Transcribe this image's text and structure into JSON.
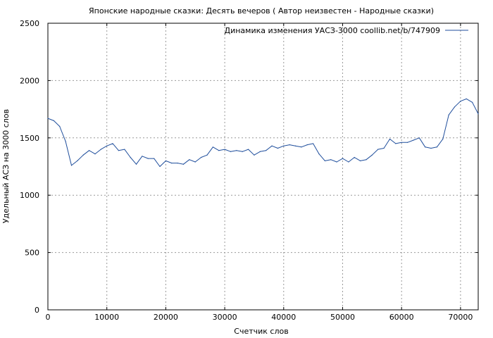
{
  "chart_data": {
    "type": "line",
    "title": "Японские народные сказки: Десять вечеров ( Автор неизвестен - Народные сказки)",
    "xlabel": "Счетчик слов",
    "ylabel": "Удельный АСЗ на 3000 слов",
    "xlim": [
      0,
      73000
    ],
    "ylim": [
      0,
      2500
    ],
    "xticks": [
      0,
      10000,
      20000,
      30000,
      40000,
      50000,
      60000,
      70000
    ],
    "yticks": [
      0,
      500,
      1000,
      1500,
      2000,
      2500
    ],
    "grid": true,
    "legend_position": "top-right",
    "series": [
      {
        "name": "Динамика изменения УАСЗ-3000 coollib.net/b/747909",
        "color": "#1f4e9c",
        "x": [
          0,
          1000,
          2000,
          3000,
          4000,
          5000,
          6000,
          7000,
          8000,
          9000,
          10000,
          11000,
          12000,
          13000,
          14000,
          15000,
          16000,
          17000,
          18000,
          19000,
          20000,
          21000,
          22000,
          23000,
          24000,
          25000,
          26000,
          27000,
          28000,
          29000,
          30000,
          31000,
          32000,
          33000,
          34000,
          35000,
          36000,
          37000,
          38000,
          39000,
          40000,
          41000,
          42000,
          43000,
          44000,
          45000,
          46000,
          47000,
          48000,
          49000,
          50000,
          51000,
          52000,
          53000,
          54000,
          55000,
          56000,
          57000,
          58000,
          59000,
          60000,
          61000,
          62000,
          63000,
          64000,
          65000,
          66000,
          67000,
          68000,
          69000,
          70000,
          71000,
          72000,
          73000
        ],
        "y": [
          1670,
          1650,
          1600,
          1470,
          1260,
          1300,
          1350,
          1390,
          1360,
          1400,
          1430,
          1450,
          1390,
          1400,
          1330,
          1270,
          1340,
          1320,
          1320,
          1250,
          1300,
          1280,
          1280,
          1270,
          1310,
          1290,
          1330,
          1350,
          1420,
          1390,
          1400,
          1380,
          1390,
          1380,
          1400,
          1350,
          1380,
          1390,
          1430,
          1410,
          1430,
          1440,
          1430,
          1420,
          1440,
          1450,
          1360,
          1300,
          1310,
          1290,
          1320,
          1290,
          1330,
          1300,
          1310,
          1350,
          1400,
          1410,
          1490,
          1450,
          1460,
          1460,
          1480,
          1500,
          1420,
          1410,
          1420,
          1490,
          1700,
          1770,
          1820,
          1840,
          1810,
          1710
        ]
      }
    ]
  }
}
